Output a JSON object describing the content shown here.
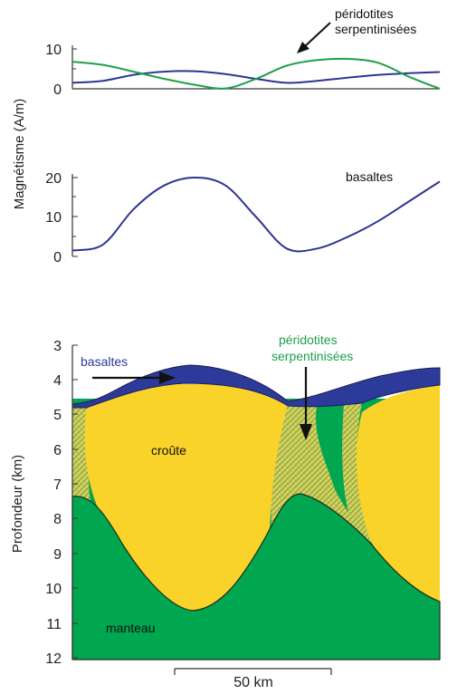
{
  "chart_data": [
    {
      "type": "line",
      "ylabel": "Magnétisme  (A/m)",
      "y_ticks": [
        "0",
        "10"
      ],
      "ylim": [
        0,
        10
      ],
      "series": [
        {
          "color": "#2d3592",
          "x": [
            0,
            15,
            30,
            45,
            60,
            75,
            90,
            105,
            120,
            135,
            150,
            165,
            180
          ],
          "values": [
            1.5,
            2,
            3.5,
            4.3,
            4.4,
            3.7,
            2.5,
            1.5,
            2,
            2.8,
            3.5,
            3.9,
            4.2
          ]
        },
        {
          "color": "#1fa04a",
          "x": [
            0,
            15,
            30,
            45,
            60,
            75,
            90,
            105,
            120,
            135,
            150,
            165,
            180
          ],
          "values": [
            6.8,
            6,
            4.3,
            2.5,
            1,
            0.1,
            2.5,
            5.8,
            7.2,
            7.5,
            6.5,
            3,
            0
          ]
        }
      ],
      "annotation": [
        "péridotites",
        "serpentinisées"
      ]
    },
    {
      "type": "line",
      "y_ticks": [
        "0",
        "10",
        "20"
      ],
      "ylim": [
        0,
        20
      ],
      "series": [
        {
          "color": "#2d3592",
          "x": [
            0,
            15,
            30,
            45,
            60,
            75,
            90,
            105,
            120,
            135,
            150,
            165,
            180
          ],
          "values": [
            1.5,
            3,
            12,
            18,
            20,
            18,
            10,
            2,
            2,
            5,
            9,
            14,
            19
          ]
        }
      ],
      "annotation": [
        "basaltes"
      ]
    }
  ],
  "profile": {
    "ylabel": "Profondeur (km)",
    "y_ticks": [
      "3",
      "4",
      "5",
      "6",
      "7",
      "8",
      "9",
      "10",
      "11",
      "12"
    ],
    "labels": {
      "basaltes": "basaltes",
      "peridotites_1": "péridotites",
      "peridotites_2": "serpentinisées",
      "croute": "croûte",
      "manteau": "manteau"
    },
    "colors": {
      "basalt": "#2c3a9a",
      "crust": "#f9d22a",
      "mantle": "#00a650",
      "serpentinite": "#c8cf55"
    },
    "scale_bar": "50 km"
  }
}
